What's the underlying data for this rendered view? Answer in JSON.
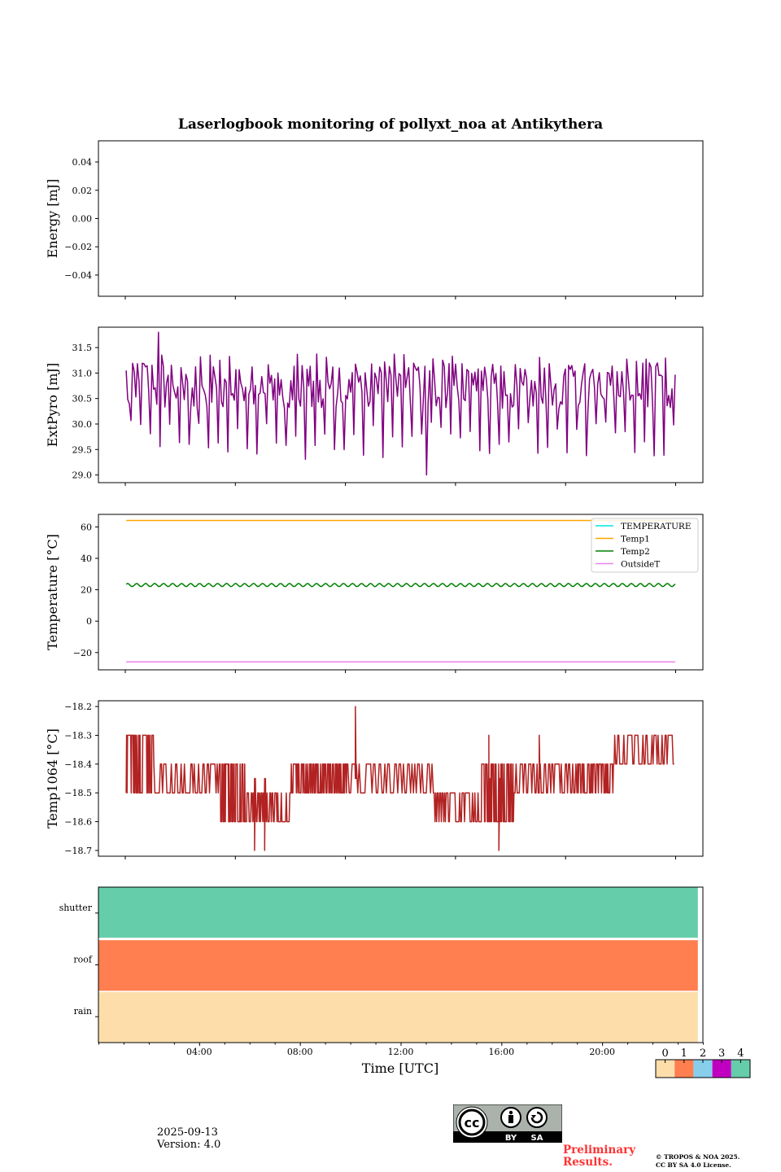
{
  "title": "Laserlogbook monitoring of pollyxt_noa at Antikythera",
  "footer": {
    "date": "2025-09-13",
    "version": "Version: 4.0",
    "preliminary": [
      "Preliminary",
      "Results."
    ],
    "copyright": [
      "© TROPOS & NOA 2025.",
      "CC BY SA 4.0 License."
    ],
    "license_badge": {
      "icon": "cc-by-sa-icon",
      "by": "BY",
      "sa": "SA"
    }
  },
  "chart_data": [
    {
      "type": "line",
      "name": "energy",
      "ylabel": "Energy [mJ]",
      "ylim": [
        -0.055,
        0.055
      ],
      "yticks": [
        0.04,
        0.02,
        0.0,
        -0.02,
        -0.04
      ],
      "ytick_labels": [
        "0.04",
        "0.02",
        "0.00",
        "−0.02",
        "−0.04"
      ],
      "xlim_hours": [
        0,
        24
      ],
      "series": []
    },
    {
      "type": "line",
      "name": "extpyro",
      "ylabel": "ExtPyro [mJ]",
      "ylim": [
        28.85,
        31.9
      ],
      "yticks": [
        29.0,
        29.5,
        30.0,
        30.5,
        31.0,
        31.5
      ],
      "ytick_labels": [
        "29.0",
        "29.5",
        "30.0",
        "30.5",
        "31.0",
        "31.5"
      ],
      "xlim_hours": [
        0,
        24
      ],
      "series": [
        {
          "name": "ExtPyro",
          "color": "#800080",
          "t_start": 1.1,
          "t_end": 22.9,
          "baseline": 30.75,
          "dip_min": 29.0,
          "peak_max": 31.8,
          "sample_hours": [
            1.1,
            1.3,
            2.0,
            3.0,
            5.0,
            7.0,
            9.0,
            11.0,
            12.9,
            15.0,
            17.0,
            19.0,
            21.0,
            22.9
          ],
          "sample_values": [
            31.05,
            30.1,
            31.8,
            29.9,
            29.3,
            29.2,
            29.3,
            29.3,
            29.0,
            29.5,
            29.5,
            29.6,
            29.6,
            30.8
          ]
        }
      ]
    },
    {
      "type": "line",
      "name": "temperature",
      "ylabel": "Temperature [°C]",
      "ylim": [
        -31,
        68
      ],
      "yticks": [
        60,
        40,
        20,
        0,
        -20
      ],
      "ytick_labels": [
        "60",
        "40",
        "20",
        "0",
        "−20"
      ],
      "xlim_hours": [
        0,
        24
      ],
      "legend": "top-right",
      "series": [
        {
          "name": "TEMPERATURE",
          "color": "#00e5e5",
          "values": []
        },
        {
          "name": "Temp1",
          "color": "#ffa500",
          "constant": 64.1,
          "t_start": 1.1,
          "t_end": 22.9
        },
        {
          "name": "Temp2",
          "color": "#008000",
          "mean": 23.0,
          "amplitude": 1.0,
          "t_start": 1.1,
          "t_end": 22.9
        },
        {
          "name": "OutsideT",
          "color": "#ee82ee",
          "constant": -25.9,
          "t_start": 1.1,
          "t_end": 22.9
        }
      ]
    },
    {
      "type": "line",
      "name": "temp1064",
      "ylabel": "Temp1064 [°C]",
      "ylim": [
        -18.72,
        -18.18
      ],
      "yticks": [
        -18.2,
        -18.3,
        -18.4,
        -18.5,
        -18.6,
        -18.7
      ],
      "ytick_labels": [
        "−18.2",
        "−18.3",
        "−18.4",
        "−18.5",
        "−18.6",
        "−18.7"
      ],
      "xlim_hours": [
        0,
        24
      ],
      "series": [
        {
          "name": "Temp1064",
          "color": "#b22222",
          "segments_hours": [
            1.1,
            2.2,
            4.8,
            5.9,
            7.6,
            8.8,
            9.9,
            13.3,
            15.2,
            16.5,
            19.0,
            20.5,
            22.9
          ],
          "segment_low": [
            -18.5,
            -18.5,
            -18.6,
            -18.6,
            -18.5,
            -18.5,
            -18.5,
            -18.6,
            -18.6,
            -18.5,
            -18.5,
            -18.4
          ],
          "segment_high": [
            -18.3,
            -18.4,
            -18.4,
            -18.5,
            -18.4,
            -18.4,
            -18.4,
            -18.5,
            -18.4,
            -18.4,
            -18.4,
            -18.3
          ],
          "spikes": [
            {
              "hour": 10.2,
              "value": -18.2
            },
            {
              "hour": 15.5,
              "value": -18.3
            },
            {
              "hour": 17.5,
              "value": -18.3
            }
          ],
          "dips": [
            {
              "hour": 6.2,
              "value": -18.7
            },
            {
              "hour": 6.6,
              "value": -18.7
            },
            {
              "hour": 15.9,
              "value": -18.7
            }
          ]
        }
      ]
    },
    {
      "type": "heatmap",
      "name": "status",
      "rows": [
        "shutter",
        "roof",
        "rain"
      ],
      "row_values": [
        4,
        1,
        0
      ],
      "xlim_hours": [
        0,
        24
      ],
      "data_t_end": 23.8,
      "xlabel": "Time [UTC]",
      "xtick_labels": [
        "04:00",
        "08:00",
        "12:00",
        "16:00",
        "20:00"
      ],
      "xtick_hours": [
        4,
        8,
        12,
        16,
        20
      ],
      "colorbar": {
        "ticks": [
          "0",
          "1",
          "2",
          "3",
          "4"
        ],
        "colors": [
          "#fddeab",
          "#ff7f50",
          "#87ceeb",
          "#c000c0",
          "#66cdaa"
        ]
      }
    }
  ]
}
